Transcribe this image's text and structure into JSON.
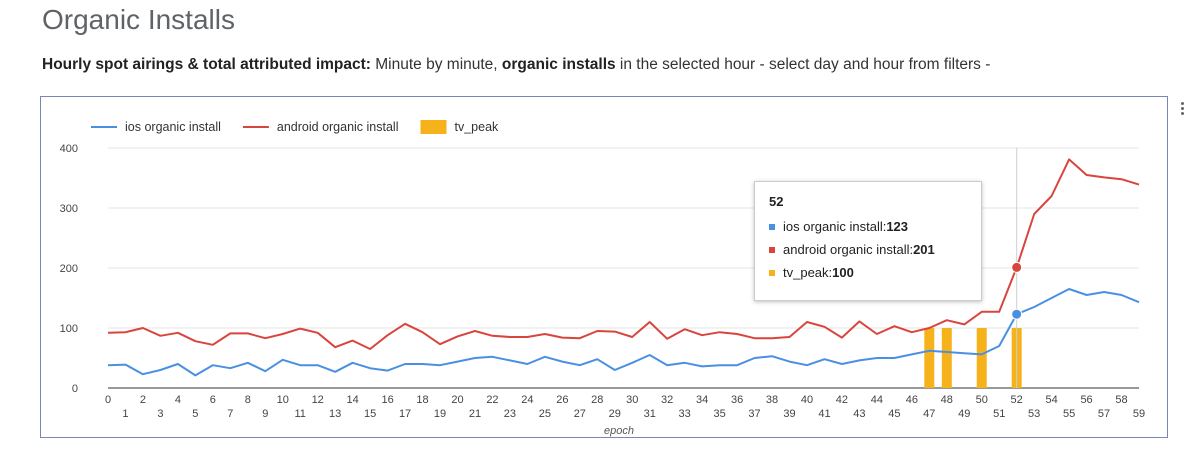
{
  "header": {
    "title": "Organic Installs",
    "subtitle_bold_1": "Hourly spot airings & total attributed impact:",
    "subtitle_text_1": " Minute by minute, ",
    "subtitle_bold_2": "organic installs",
    "subtitle_text_2": " in the selected hour - select day and hour from filters -"
  },
  "menu": {
    "icon": "more-vert-icon"
  },
  "tooltip": {
    "title": "52",
    "rows": [
      {
        "label": "ios organic install: ",
        "value": "123",
        "color": "#4a90e2"
      },
      {
        "label": "android organic install: ",
        "value": "201",
        "color": "#d9453d"
      },
      {
        "label": "tv_peak: ",
        "value": "100",
        "color": "#f5b21b"
      }
    ]
  },
  "chart_data": {
    "type": "line",
    "xlabel": "epoch",
    "ylabel": "",
    "ylim": [
      0,
      400
    ],
    "yticks": [
      0,
      100,
      200,
      300,
      400
    ],
    "grid": true,
    "legend_position": "top-left",
    "x": [
      0,
      1,
      2,
      3,
      4,
      5,
      6,
      7,
      8,
      9,
      10,
      11,
      12,
      13,
      14,
      15,
      16,
      17,
      18,
      19,
      20,
      21,
      22,
      23,
      24,
      25,
      26,
      27,
      28,
      29,
      30,
      31,
      32,
      33,
      34,
      35,
      36,
      37,
      38,
      39,
      40,
      41,
      42,
      43,
      44,
      45,
      46,
      47,
      48,
      49,
      50,
      51,
      52,
      53,
      54,
      55,
      56,
      57,
      58,
      59
    ],
    "series": [
      {
        "name": "ios organic install",
        "kind": "line",
        "color": "#4a90e2",
        "values": [
          38,
          39,
          23,
          30,
          40,
          21,
          38,
          33,
          42,
          28,
          47,
          38,
          38,
          27,
          42,
          33,
          29,
          40,
          40,
          38,
          44,
          50,
          52,
          46,
          40,
          52,
          44,
          38,
          48,
          30,
          42,
          55,
          38,
          42,
          36,
          38,
          38,
          50,
          53,
          44,
          38,
          48,
          40,
          46,
          50,
          50,
          56,
          62,
          60,
          58,
          56,
          70,
          123,
          135,
          150,
          165,
          155,
          160,
          155,
          143
        ]
      },
      {
        "name": "android organic install",
        "kind": "line",
        "color": "#d9453d",
        "values": [
          92,
          93,
          100,
          87,
          92,
          78,
          72,
          91,
          91,
          83,
          90,
          99,
          92,
          68,
          79,
          65,
          88,
          107,
          93,
          73,
          86,
          95,
          87,
          85,
          85,
          90,
          84,
          83,
          95,
          94,
          85,
          110,
          82,
          98,
          88,
          93,
          90,
          83,
          83,
          85,
          110,
          102,
          84,
          111,
          90,
          103,
          93,
          100,
          113,
          106,
          127,
          127,
          201,
          290,
          320,
          381,
          355,
          351,
          348,
          339
        ]
      },
      {
        "name": "tv_peak",
        "kind": "bar",
        "color": "#f5b21b",
        "values": [
          0,
          0,
          0,
          0,
          0,
          0,
          0,
          0,
          0,
          0,
          0,
          0,
          0,
          0,
          0,
          0,
          0,
          0,
          0,
          0,
          0,
          0,
          0,
          0,
          0,
          0,
          0,
          0,
          0,
          0,
          0,
          0,
          0,
          0,
          0,
          0,
          0,
          0,
          0,
          0,
          0,
          0,
          0,
          0,
          0,
          0,
          0,
          100,
          100,
          0,
          100,
          0,
          100,
          0,
          0,
          0,
          0,
          0,
          0,
          0
        ]
      }
    ],
    "highlight_x": 52
  }
}
